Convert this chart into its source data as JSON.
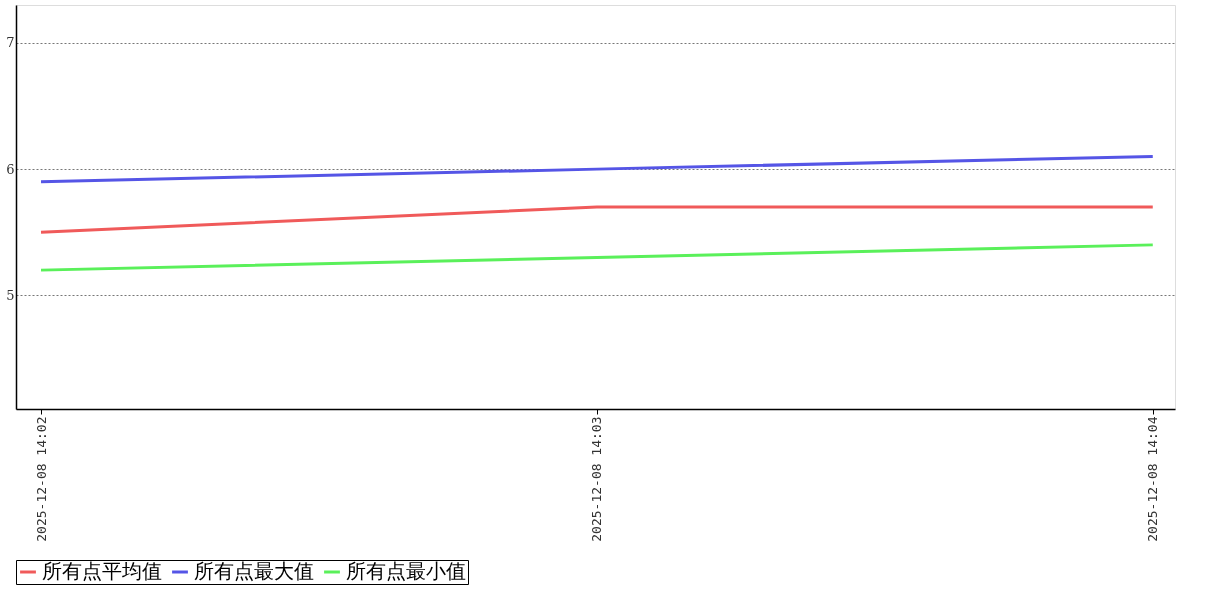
{
  "chart_data": {
    "type": "line",
    "categories": [
      "2025-12-08 14:02",
      "2025-12-08 14:03",
      "2025-12-08 14:04"
    ],
    "series": [
      {
        "name": "所有点平均值",
        "color": "#f05a5a",
        "values": [
          5.5,
          5.7,
          5.7
        ]
      },
      {
        "name": "所有点最大值",
        "color": "#5555e6",
        "values": [
          5.9,
          6.0,
          6.1
        ]
      },
      {
        "name": "所有点最小值",
        "color": "#5af05a",
        "values": [
          5.2,
          5.3,
          5.4
        ]
      }
    ],
    "ylim": [
      4.1,
      7.3
    ],
    "yticks": [
      5,
      6,
      7
    ],
    "grid": "y",
    "legend": "bottom",
    "marker": "none",
    "line_style": "solid"
  }
}
